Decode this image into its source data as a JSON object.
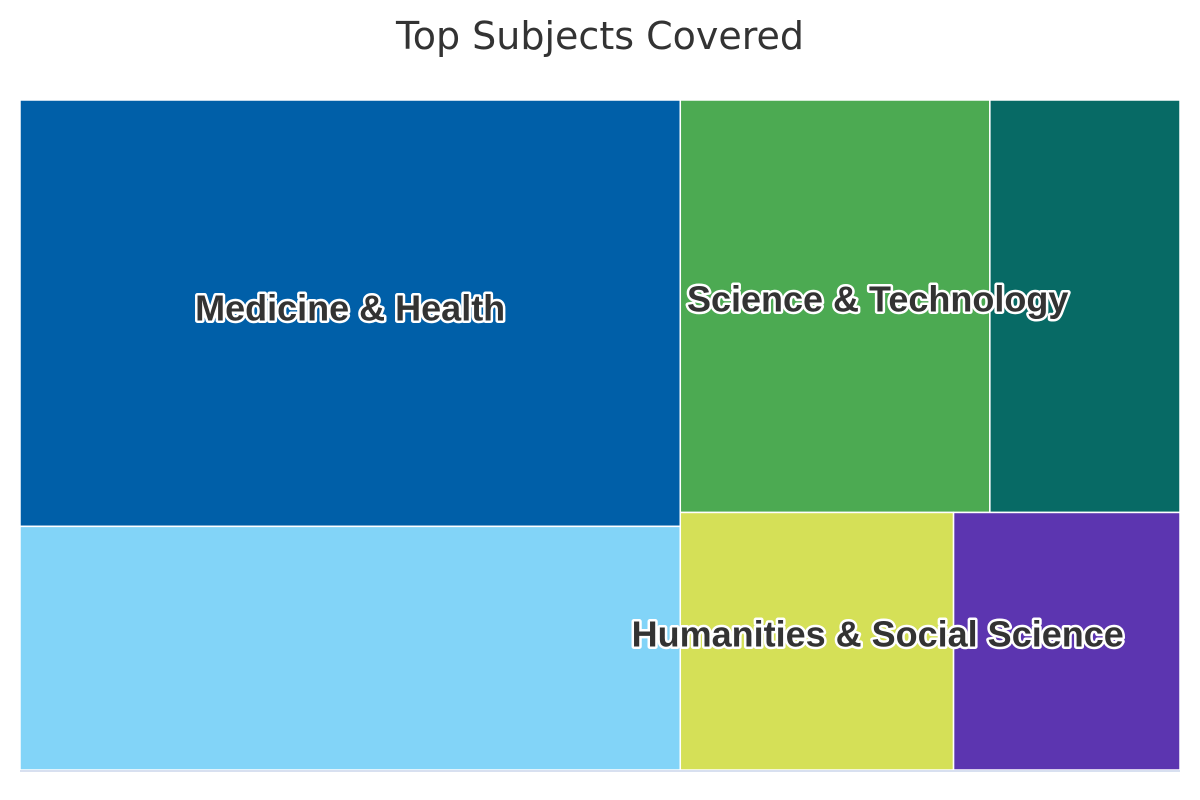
{
  "title": "Top Subjects Covered",
  "chart_data": {
    "type": "treemap",
    "title": "Top Subjects Covered",
    "groups": [
      {
        "name": "Medicine & Health",
        "children": [
          {
            "value": 280,
            "color": "#005fa8"
          },
          {
            "value": 160,
            "color": "#82d4f8"
          }
        ]
      },
      {
        "name": "Science & Technology",
        "children": [
          {
            "value": 127,
            "color": "#4caa52"
          },
          {
            "value": 78,
            "color": "#076a65"
          }
        ]
      },
      {
        "name": "Humanities & Social Science",
        "children": [
          {
            "value": 70,
            "color": "#d5e057"
          },
          {
            "value": 58,
            "color": "#5c35b0"
          }
        ]
      }
    ]
  }
}
